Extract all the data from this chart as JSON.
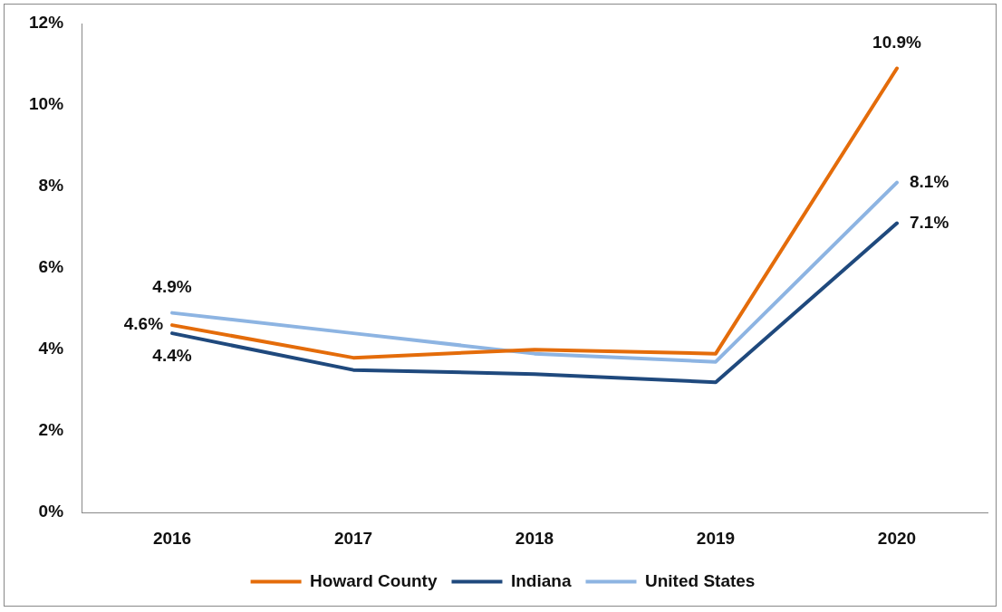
{
  "chart_data": {
    "type": "line",
    "categories": [
      "2016",
      "2017",
      "2018",
      "2019",
      "2020"
    ],
    "series": [
      {
        "name": "Howard County",
        "color": "#e46c0a",
        "values": [
          4.6,
          3.8,
          4.0,
          3.9,
          10.9
        ],
        "value_labels": [
          "4.6%",
          null,
          null,
          null,
          "10.9%"
        ]
      },
      {
        "name": "Indiana",
        "color": "#1f497d",
        "values": [
          4.4,
          3.5,
          3.4,
          3.2,
          7.1
        ],
        "value_labels": [
          "4.4%",
          null,
          null,
          null,
          "7.1%"
        ]
      },
      {
        "name": "United States",
        "color": "#8db4e2",
        "values": [
          4.9,
          4.4,
          3.9,
          3.7,
          8.1
        ],
        "value_labels": [
          "4.9%",
          null,
          null,
          null,
          "8.1%"
        ]
      }
    ],
    "ylim": [
      0,
      12
    ],
    "yticks": [
      {
        "value": 0,
        "label": "0%"
      },
      {
        "value": 2,
        "label": "2%"
      },
      {
        "value": 4,
        "label": "4%"
      },
      {
        "value": 6,
        "label": "6%"
      },
      {
        "value": 8,
        "label": "8%"
      },
      {
        "value": 10,
        "label": "10%"
      },
      {
        "value": 12,
        "label": "12%"
      }
    ],
    "grid": false,
    "legend": "bottom",
    "marker": "none",
    "line_style": "solid"
  }
}
